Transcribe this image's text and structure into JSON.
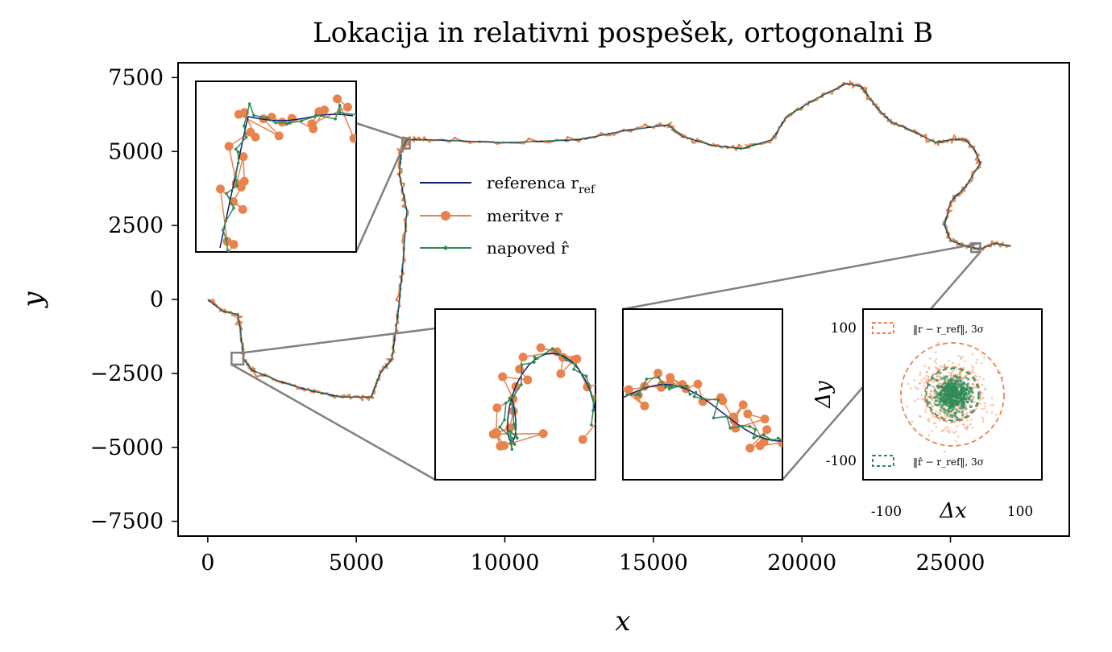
{
  "chart_data": {
    "type": "line",
    "title": "Lokacija in relativni pospešek, ortogonalni B",
    "xlabel": "x",
    "ylabel": "y",
    "xlim": [
      -1000,
      29000
    ],
    "ylim": [
      -8000,
      8000
    ],
    "xticks": [
      0,
      5000,
      10000,
      15000,
      20000,
      25000
    ],
    "yticks": [
      7500,
      5000,
      2500,
      0,
      -2500,
      -5000,
      -7500
    ],
    "xtick_labels": [
      "0",
      "5000",
      "10000",
      "15000",
      "20000",
      "25000"
    ],
    "ytick_labels": [
      "7500",
      "5000",
      "2500",
      "0",
      "−2500",
      "−5000",
      "−7500"
    ],
    "colors": {
      "reference": "#0b1f6e",
      "measurement": "#e8834e",
      "prediction": "#2e8b57",
      "inset_frame": "#808080"
    },
    "legend": [
      {
        "name": "referenca r",
        "sub": "ref",
        "marker": "line"
      },
      {
        "name": "meritve r",
        "marker": "dot"
      },
      {
        "name": "napoved r̂",
        "marker": "small-dot"
      }
    ],
    "series": [
      {
        "name": "referenca",
        "x": [
          0,
          500,
          1000,
          1100,
          1200,
          1500,
          2500,
          3500,
          4500,
          5500,
          5800,
          6200,
          6400,
          6550,
          6700,
          6450,
          6500,
          6600,
          6700,
          6800,
          7500,
          10000,
          12500,
          14000,
          15500,
          16000,
          17000,
          18000,
          19000,
          19500,
          20500,
          21500,
          22000,
          22500,
          23000,
          23500,
          24500,
          25000,
          25500,
          25800,
          26000,
          25500,
          25000,
          24800,
          25000,
          25500,
          26000,
          26500,
          27000
        ],
        "y": [
          0,
          -400,
          -500,
          -1000,
          -2000,
          -2400,
          -2800,
          -3100,
          -3300,
          -3300,
          -2500,
          -2000,
          -500,
          1000,
          3000,
          4200,
          5000,
          5200,
          5400,
          5400,
          5400,
          5300,
          5400,
          5700,
          5900,
          5500,
          5200,
          5100,
          5400,
          6200,
          6800,
          7300,
          7200,
          6500,
          6000,
          5800,
          5300,
          5400,
          5400,
          5100,
          4600,
          3800,
          3300,
          2500,
          2000,
          1800,
          1700,
          1900,
          1800
        ]
      },
      {
        "name": "meritve",
        "style": "noisy markers along reference"
      },
      {
        "name": "napoved",
        "style": "smoothed line along reference"
      }
    ],
    "zoom_boxes": [
      {
        "x": [
          6550,
          6800
        ],
        "y": [
          5100,
          5450
        ]
      },
      {
        "x": [
          800,
          1200
        ],
        "y": [
          -2200,
          -1800
        ]
      },
      {
        "x": [
          25700,
          26000
        ],
        "y": [
          1600,
          1900
        ]
      }
    ],
    "residual_inset": {
      "xlabel": "Δx",
      "ylabel": "Δy",
      "xticks": [
        "-100",
        "100"
      ],
      "yticks": [
        "100",
        "-100"
      ],
      "xlim": [
        -130,
        130
      ],
      "ylim": [
        -130,
        130
      ],
      "legend_meas": "‖r − r_ref‖, 3σ",
      "legend_pred": "‖r̂ − r_ref‖, 3σ",
      "meas_3sigma_radius": 75,
      "meas_sigma_radius": 40,
      "pred_3sigma_radius": 38
    }
  }
}
